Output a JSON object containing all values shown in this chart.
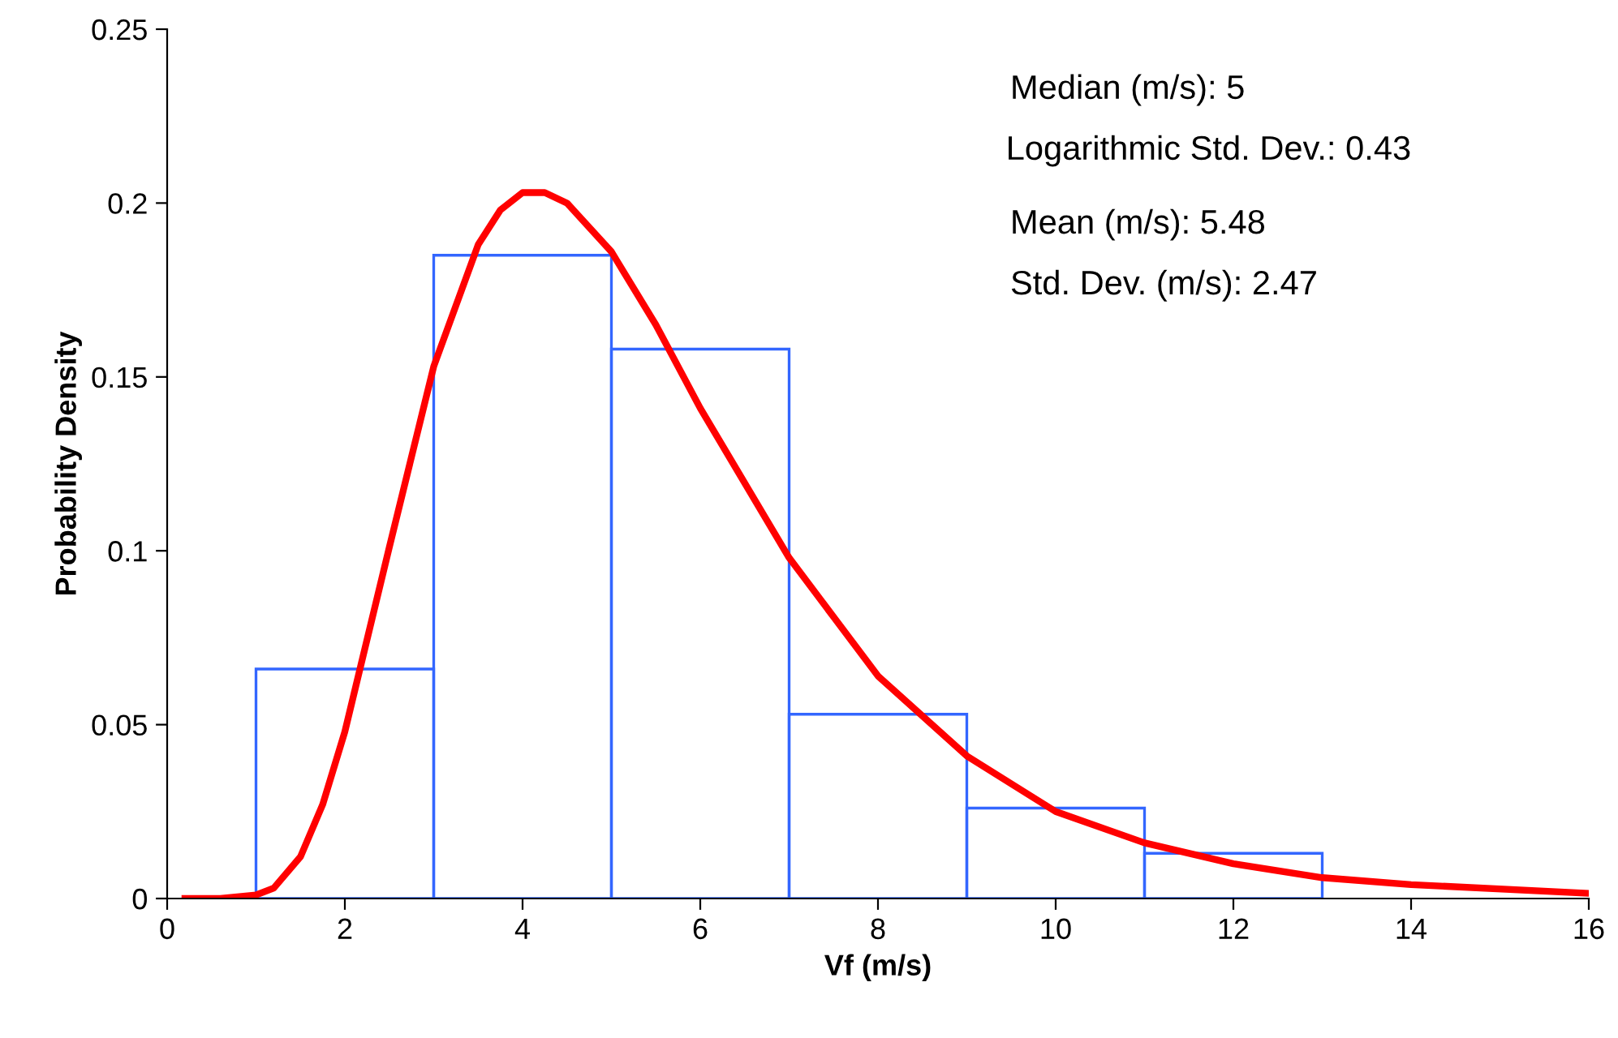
{
  "chart_data": {
    "type": "histogram",
    "xlabel": "Vf (m/s)",
    "ylabel": "Probability Density",
    "bins": [
      1,
      3,
      5,
      7,
      9,
      11,
      13
    ],
    "values": [
      0.066,
      0.185,
      0.158,
      0.053,
      0.026,
      0.013
    ],
    "color": "#3366ff",
    "series": [
      {
        "type": "line",
        "color": "#ff0000",
        "x": [
          0.2,
          0.6,
          1,
          1.2,
          1.5,
          1.75,
          2,
          2.5,
          3,
          3.5,
          3.75,
          4,
          4.25,
          4.5,
          5,
          5.5,
          6,
          7,
          8,
          9,
          10,
          11,
          12,
          13,
          14,
          16
        ],
        "values": [
          0,
          0,
          0.001,
          0.003,
          0.012,
          0.027,
          0.048,
          0.101,
          0.153,
          0.188,
          0.198,
          0.203,
          0.203,
          0.2,
          0.186,
          0.165,
          0.141,
          0.098,
          0.064,
          0.041,
          0.025,
          0.016,
          0.01,
          0.006,
          0.004,
          0.0015
        ]
      }
    ],
    "xlim": [
      0,
      16
    ],
    "xticks": [
      0,
      2,
      4,
      6,
      8,
      10,
      12,
      14,
      16
    ],
    "ylim": [
      0,
      0.25
    ],
    "yticks": [
      0,
      0.05,
      0.1,
      0.15,
      0.2,
      0.25
    ],
    "grid": false,
    "legend": false,
    "annotations": [
      "Median (m/s): 5",
      "Logarithmic Std. Dev.: 0.43",
      "Mean (m/s): 5.48",
      "Std. Dev. (m/s): 2.47"
    ]
  }
}
